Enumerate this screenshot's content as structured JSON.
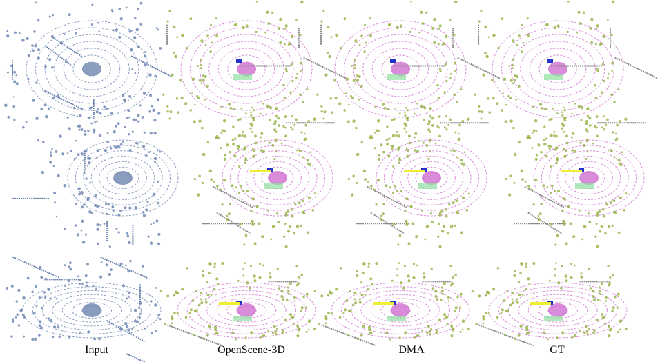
{
  "captions": [
    "Input",
    "OpenScene-3D",
    "DMA",
    "GT"
  ]
}
